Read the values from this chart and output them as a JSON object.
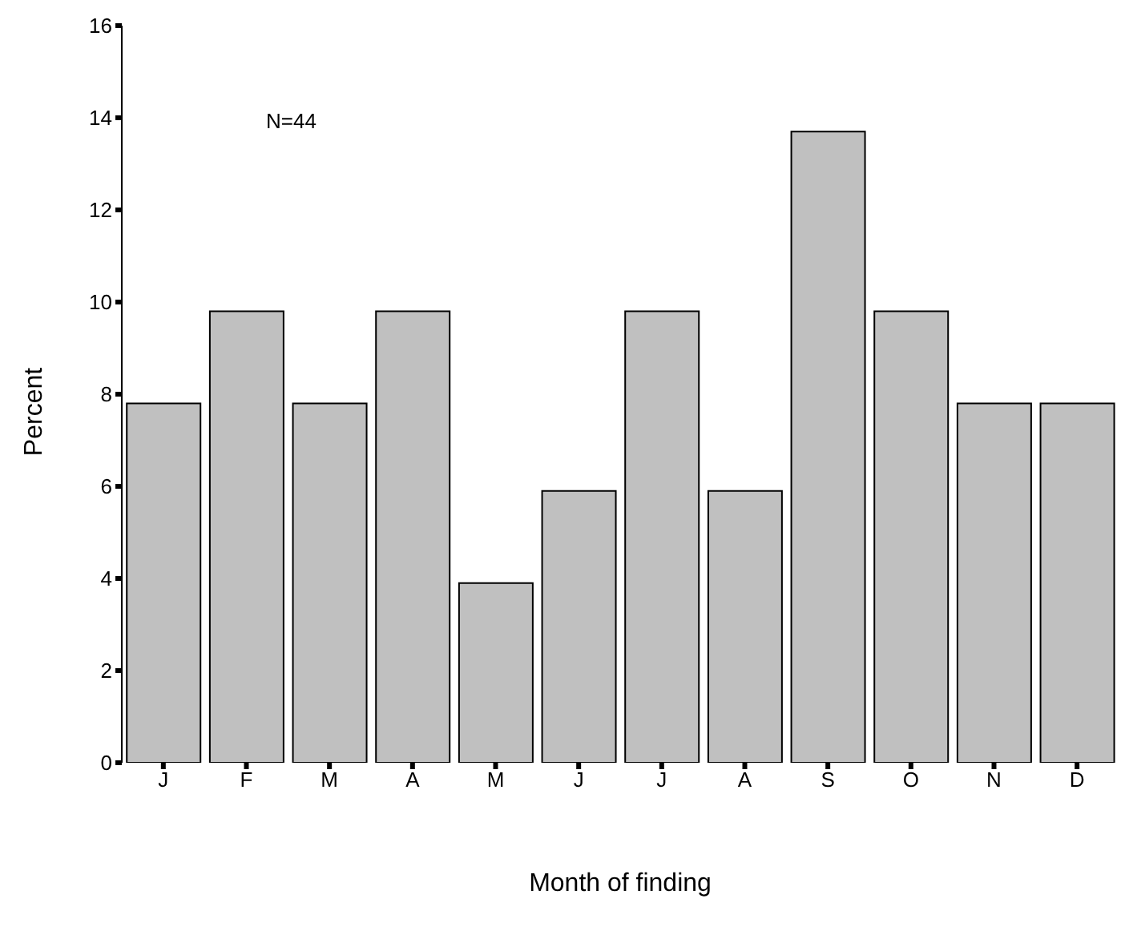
{
  "chart_data": {
    "type": "bar",
    "xlabel": "Month of finding",
    "ylabel": "Percent",
    "categories": [
      "J",
      "F",
      "M",
      "A",
      "M",
      "J",
      "J",
      "A",
      "S",
      "O",
      "N",
      "D"
    ],
    "values": [
      7.8,
      9.8,
      7.8,
      9.8,
      3.9,
      5.9,
      9.8,
      5.9,
      13.7,
      9.8,
      7.8,
      7.8
    ],
    "color": "#c0c0c0",
    "ylim": [
      0,
      16
    ],
    "yticks": [
      0,
      2,
      4,
      6,
      8,
      10,
      12,
      14,
      16
    ],
    "grid": false,
    "legend": false,
    "annotations": [
      "N=44"
    ]
  }
}
